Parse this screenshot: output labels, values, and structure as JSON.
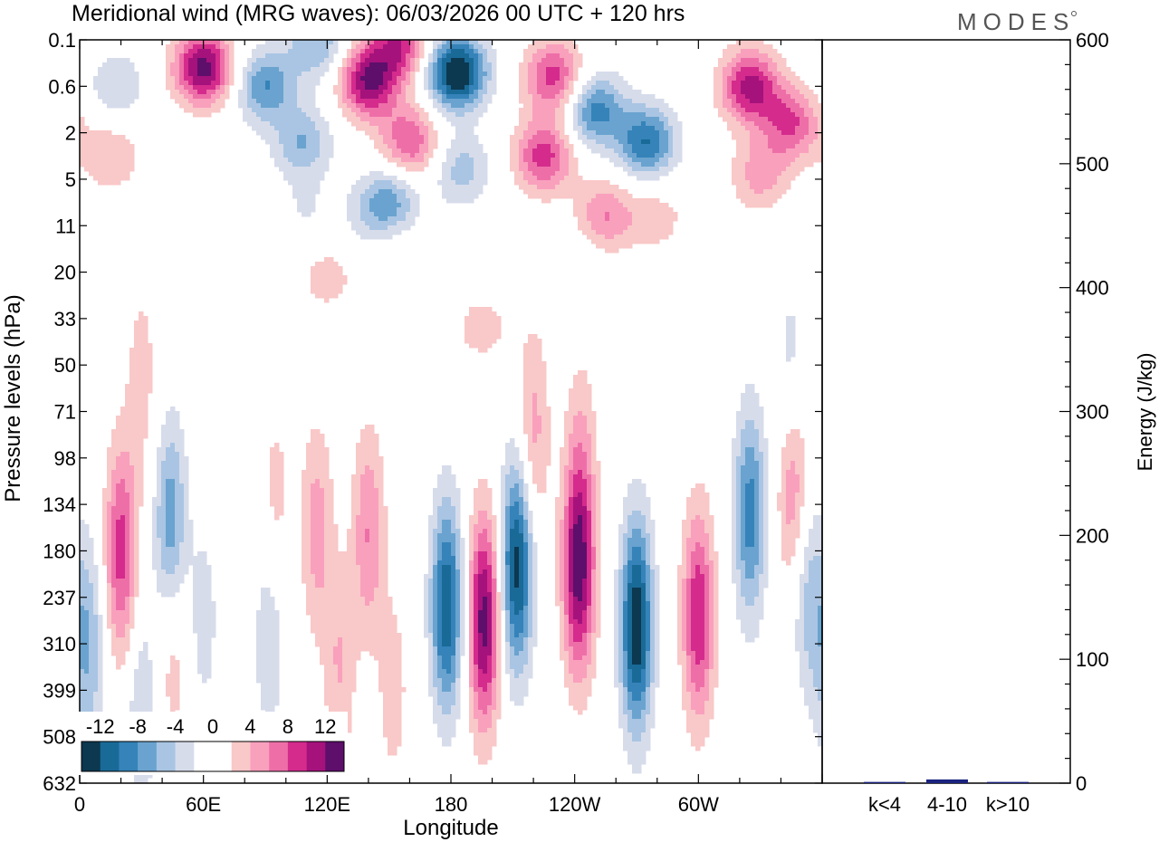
{
  "chart_data": [
    {
      "type": "heatmap",
      "title": "Meridional wind (MRG waves):  06/03/2026  00 UTC  + 120 hrs",
      "xlabel": "Longitude",
      "ylabel": "Pressure levels (hPa)",
      "x_ticks": [
        "0",
        "60E",
        "120E",
        "180",
        "120W",
        "60W"
      ],
      "x_tick_degrees": [
        0,
        60,
        120,
        180,
        240,
        300
      ],
      "xlim": [
        0,
        360
      ],
      "y_ticks": [
        "0.1",
        "0.6",
        "2",
        "5",
        "11",
        "20",
        "33",
        "50",
        "71",
        "98",
        "134",
        "180",
        "237",
        "310",
        "399",
        "508",
        "632"
      ],
      "colorbar": {
        "labels": [
          "-12",
          "-8",
          "-4",
          "0",
          "4",
          "8",
          "12"
        ],
        "colors": [
          "#0c3850",
          "#1a6a98",
          "#3583b9",
          "#6aa3cf",
          "#a9c5e3",
          "#d7dceb",
          "#ffffff",
          "#ffffff",
          "#f9c8c8",
          "#f9a0bd",
          "#ee6fa8",
          "#d42b8d",
          "#a5127c",
          "#5e0e6b"
        ]
      },
      "blobs": [
        {
          "lon": 20,
          "lev": 11,
          "v": 9
        },
        {
          "lon": 44,
          "lev": 10.5,
          "v": -8
        },
        {
          "lon": 95,
          "lev": 10,
          "v": 3
        },
        {
          "lon": 60,
          "lev": 12.5,
          "v": -3
        },
        {
          "lon": 92,
          "lev": 12.8,
          "v": -4
        },
        {
          "lon": 45,
          "lev": 13,
          "v": 4
        },
        {
          "lon": 4,
          "lev": 13.1,
          "v": -6
        },
        {
          "lon": 30,
          "lev": 14.5,
          "v": -4
        },
        {
          "lon": 115,
          "lev": 10.5,
          "v": 5
        },
        {
          "lon": 140,
          "lev": 10.6,
          "v": 6
        },
        {
          "lon": 126,
          "lev": 13.5,
          "v": 4
        },
        {
          "lon": 152,
          "lev": 14,
          "v": 3
        },
        {
          "lon": 178,
          "lev": 12.2,
          "v": -12
        },
        {
          "lon": 196,
          "lev": 12.5,
          "v": 13
        },
        {
          "lon": 212,
          "lev": 11.3,
          "v": -13
        },
        {
          "lon": 242,
          "lev": 11.4,
          "v": 13
        },
        {
          "lon": 270,
          "lev": 12.6,
          "v": -14
        },
        {
          "lon": 300,
          "lev": 12.4,
          "v": 10
        },
        {
          "lon": 325,
          "lev": 10.2,
          "v": -9
        },
        {
          "lon": 346,
          "lev": 9.5,
          "v": 7
        },
        {
          "lon": 353,
          "lev": 11.9,
          "v": -5
        },
        {
          "lon": 220,
          "lev": 8.5,
          "v": 5
        },
        {
          "lon": 243,
          "lev": 8.8,
          "v": 3
        },
        {
          "lon": 30,
          "lev": 7.3,
          "v": 3
        },
        {
          "lon": 345,
          "lev": 7.4,
          "v": -4
        },
        {
          "lon": 152,
          "lev": 4.5,
          "v": 2
        },
        {
          "lon": 140,
          "lev": 3.9,
          "v": -2
        },
        {
          "lon": 242,
          "lev": 5,
          "v": -2
        },
        {
          "lon": 280,
          "lev": 3.8,
          "v": 3
        },
        {
          "lon": 110,
          "lev": 3.7,
          "v": -2
        },
        {
          "lon": 120,
          "lev": 5.1,
          "v": 3
        },
        {
          "lon": 195,
          "lev": 6.2,
          "v": 3
        },
        {
          "lon": 60,
          "lev": 0.6,
          "v": 13
        },
        {
          "lon": 90,
          "lev": 1.0,
          "v": -8
        },
        {
          "lon": 18,
          "lev": 1.0,
          "v": -4
        },
        {
          "lon": 140,
          "lev": 0.9,
          "v": 12
        },
        {
          "lon": 183,
          "lev": 0.7,
          "v": -15
        },
        {
          "lon": 155,
          "lev": 0.1,
          "v": 9
        },
        {
          "lon": 115,
          "lev": 0.1,
          "v": -6
        },
        {
          "lon": 230,
          "lev": 0.8,
          "v": 9
        },
        {
          "lon": 250,
          "lev": 1.5,
          "v": -9
        },
        {
          "lon": 325,
          "lev": 1.0,
          "v": 11
        },
        {
          "lon": 345,
          "lev": 1.8,
          "v": 8
        },
        {
          "lon": 275,
          "lev": 2.2,
          "v": -10
        },
        {
          "lon": 225,
          "lev": 2.5,
          "v": 9
        },
        {
          "lon": 160,
          "lev": 2.2,
          "v": 8
        },
        {
          "lon": 108,
          "lev": 2.2,
          "v": -6
        },
        {
          "lon": 15,
          "lev": 2.5,
          "v": 4
        },
        {
          "lon": 185,
          "lev": 2.8,
          "v": -5
        },
        {
          "lon": 150,
          "lev": 3.5,
          "v": -7
        },
        {
          "lon": 330,
          "lev": 2.9,
          "v": 5
        },
        {
          "lon": 255,
          "lev": 3.8,
          "v": 6
        }
      ]
    },
    {
      "type": "bar",
      "categories": [
        "k<4",
        "4-10",
        "k>10"
      ],
      "values": [
        1,
        3,
        1
      ],
      "ylabel": "Energy (J/kg)",
      "ylim": [
        0,
        600
      ],
      "y_ticks": [
        "0",
        "100",
        "200",
        "300",
        "400",
        "500",
        "600"
      ],
      "y_tick_values": [
        0,
        100,
        200,
        300,
        400,
        500,
        600
      ],
      "bar_color": "#1a237e"
    }
  ],
  "logo_text": "MODES"
}
